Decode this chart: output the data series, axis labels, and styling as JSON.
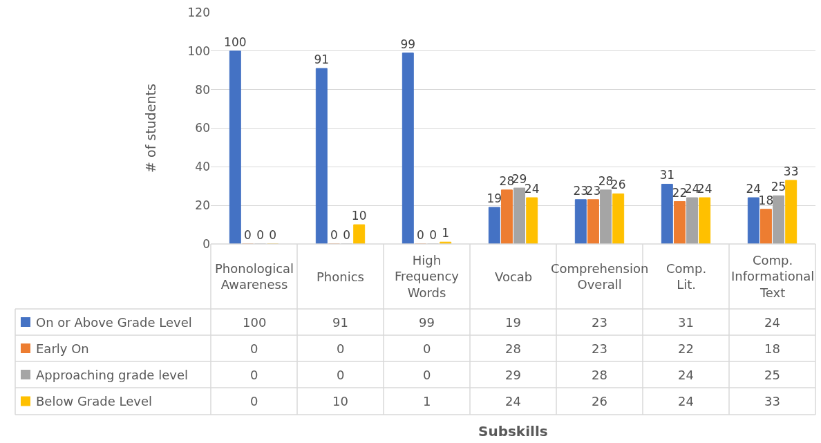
{
  "chart_data": [
    {
      "type": "bar",
      "annotations": [
        "Subskills"
      ],
      "ylabel": "# of students",
      "categories": [
        "Phonological Awareness",
        "Phonics",
        "High Frequency Words",
        "Vocab",
        "Comprehension Overall",
        "Comp. Lit.",
        "Comp. Informational Text"
      ],
      "series": [
        {
          "name": "On or Above Grade Level",
          "color": "#4472c4",
          "values": [
            100,
            91,
            99,
            19,
            23,
            31,
            24
          ]
        },
        {
          "name": "Early On",
          "color": "#ed7d31",
          "values": [
            0,
            0,
            0,
            28,
            23,
            22,
            18
          ]
        },
        {
          "name": "Approaching grade level",
          "color": "#a5a5a5",
          "values": [
            0,
            0,
            0,
            29,
            28,
            24,
            25
          ]
        },
        {
          "name": "Below Grade Level",
          "color": "#ffc000",
          "values": [
            0,
            10,
            1,
            24,
            26,
            24,
            33
          ]
        }
      ],
      "ylim": [
        0,
        120
      ],
      "yticks": [
        0,
        20,
        40,
        60,
        80,
        100,
        120
      ],
      "grid": "y",
      "data_labels": true,
      "legend": "bottom left"
    },
    {
      "type": "other",
      "annotations": [
        "100",
        "91",
        "99",
        "19",
        "23",
        "31",
        "24",
        "0",
        "0",
        "0",
        "28",
        "23",
        "22",
        "18",
        "0",
        "0",
        "0",
        "29",
        "28",
        "24",
        "25",
        "0",
        "10",
        "1",
        "24",
        "26",
        "24",
        "33"
      ]
    }
  ]
}
